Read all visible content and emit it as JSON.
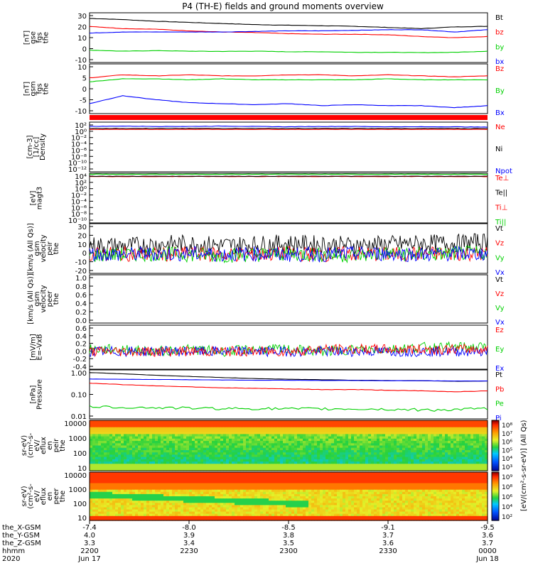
{
  "title": "P4 (TH-E) fields and ground moments overview",
  "colors": {
    "black": "#000000",
    "red": "#ff0000",
    "green": "#00d000",
    "blue": "#0000ff"
  },
  "chart_data": [
    {
      "type": "line",
      "ylabel": [
        "the",
        "fgs",
        "gse",
        "[nT]"
      ],
      "ticks": [
        "30",
        "20",
        "10",
        "0",
        "-10"
      ],
      "ylim": [
        -12,
        32
      ],
      "legend": [
        {
          "label": "Bt",
          "color": "black"
        },
        {
          "label": "bz",
          "color": "red"
        },
        {
          "label": "by",
          "color": "green"
        },
        {
          "label": "bx",
          "color": "blue"
        }
      ],
      "series": [
        {
          "label": "Bt",
          "color": "black",
          "values": [
            27,
            26,
            24.5,
            23.5,
            22.5,
            21.5,
            21,
            20.5,
            20,
            19,
            18,
            19.5,
            20
          ]
        },
        {
          "label": "bz",
          "color": "red",
          "values": [
            20,
            18,
            17.5,
            16,
            15,
            14.5,
            13.5,
            13,
            13,
            12.5,
            11,
            10,
            11
          ]
        },
        {
          "label": "by",
          "color": "green",
          "values": [
            -1,
            -2,
            -1.5,
            -2,
            -2.2,
            -2,
            -2.5,
            -2.5,
            -3,
            -3,
            -3.3,
            -3,
            -2
          ]
        },
        {
          "label": "bx",
          "color": "blue",
          "values": [
            14,
            15,
            15,
            15,
            15,
            15.5,
            16,
            16,
            16.5,
            17,
            17,
            15,
            17
          ]
        }
      ]
    },
    {
      "type": "line",
      "ylabel": [
        "the",
        "fgs",
        "gsm",
        "[nT]"
      ],
      "ticks": [
        "10",
        "5",
        "0",
        "-5",
        "-10"
      ],
      "ylim": [
        -13,
        12
      ],
      "legend": [
        {
          "label": "Bz",
          "color": "red"
        },
        {
          "label": "By",
          "color": "green"
        },
        {
          "label": "Bx",
          "color": "blue"
        }
      ],
      "series": [
        {
          "label": "Bz",
          "color": "red",
          "values": [
            5,
            6.5,
            6,
            6.5,
            6,
            6,
            6.5,
            6.5,
            6,
            6.5,
            6,
            5.5,
            6
          ]
        },
        {
          "label": "By",
          "color": "green",
          "values": [
            3,
            4.5,
            4.5,
            4,
            4.5,
            4,
            4,
            4,
            4,
            4.5,
            4,
            4,
            4
          ]
        },
        {
          "label": "Bx",
          "color": "blue",
          "values": [
            -8,
            -4,
            -6,
            -7.5,
            -8,
            -8.5,
            -8,
            -9,
            -8.5,
            -9,
            -9,
            -10,
            -9
          ]
        }
      ]
    },
    {
      "type": "line",
      "ylabel": [
        "Density",
        "[1/cc]",
        "[cm-3]"
      ],
      "ticks": [
        "10²",
        "10⁰",
        "10⁻²",
        "10⁻⁴",
        "10⁻⁶",
        "10⁻⁸",
        "10⁻¹⁰",
        "10⁻¹²"
      ],
      "ylim": [
        -12.5,
        2.5
      ],
      "legend": [
        {
          "label": "Ne",
          "color": "red"
        },
        {
          "label": "Ni",
          "color": "black"
        },
        {
          "label": "Npot",
          "color": "blue"
        }
      ],
      "series": [
        {
          "label": "Ne",
          "color": "red",
          "values": [
            0.3,
            0.3,
            0.3,
            0.3,
            0.3,
            0.3,
            0.3,
            0.3,
            0.3,
            0.3,
            0.3,
            0.3,
            0.3
          ]
        },
        {
          "label": "Ni",
          "color": "black",
          "values": [
            0.6,
            0.6,
            0.6,
            0.6,
            0.6,
            0.6,
            0.6,
            0.6,
            0.6,
            0.6,
            0.6,
            0.6,
            0.6
          ]
        },
        {
          "label": "Npot",
          "color": "blue",
          "values": [
            1.2,
            1.3,
            1.2,
            1.2,
            1.3,
            1.2,
            1.1,
            1.2,
            1.2,
            1.1,
            1.1,
            1.1,
            1.0
          ]
        }
      ]
    },
    {
      "type": "line",
      "ylabel": [
        "magt3",
        "[eV]"
      ],
      "ticks": [
        "10⁴",
        "10²",
        "10⁰",
        "10⁻²",
        "10⁻⁴",
        "10⁻⁶",
        "10⁻⁸",
        "10⁻¹⁰"
      ],
      "ylim": [
        -10.5,
        4.5
      ],
      "legend": [
        {
          "label": "Te⊥",
          "color": "red"
        },
        {
          "label": "Te||",
          "color": "black"
        },
        {
          "label": "Ti⊥",
          "color": "red"
        },
        {
          "label": "Ti||",
          "color": "green"
        }
      ],
      "series": [
        {
          "label": "Te⊥",
          "color": "red",
          "values": [
            3.5,
            3.5,
            3.5,
            3.5,
            3.5,
            3.5,
            3.5,
            3.5,
            3.5,
            3.5,
            3.5,
            3.5,
            3.5
          ]
        },
        {
          "label": "Te||",
          "color": "black",
          "values": [
            3.6,
            3.6,
            3.6,
            3.6,
            3.6,
            3.6,
            3.6,
            3.6,
            3.6,
            3.6,
            3.6,
            3.6,
            3.6
          ]
        },
        {
          "label": "Ti||",
          "color": "green",
          "values": [
            4.2,
            4.2,
            4.2,
            4.2,
            4.2,
            4.2,
            4.2,
            4.2,
            4.2,
            4.2,
            4.2,
            4.2,
            4.2
          ]
        }
      ]
    },
    {
      "type": "line",
      "ylabel": [
        "the",
        "peir",
        "velocity",
        "gsm",
        "[km/s (All Qs)]"
      ],
      "ticks": [
        "30",
        "20",
        "10",
        "0",
        "-10",
        "-20"
      ],
      "ylim": [
        -20,
        33
      ],
      "legend": [
        {
          "label": "Vt",
          "color": "black"
        },
        {
          "label": "Vz",
          "color": "red"
        },
        {
          "label": "Vy",
          "color": "green"
        },
        {
          "label": "Vx",
          "color": "blue"
        }
      ],
      "series": [
        {
          "label": "Vt",
          "color": "black",
          "values": [
            10,
            9,
            11,
            12,
            10,
            11,
            12,
            11,
            10,
            11,
            12,
            12,
            14
          ]
        },
        {
          "label": "Vz",
          "color": "red",
          "values": [
            0,
            1,
            0,
            1,
            0,
            0,
            1,
            0,
            1,
            0,
            1,
            1,
            1
          ]
        },
        {
          "label": "Vy",
          "color": "green",
          "values": [
            -1,
            0,
            1,
            0,
            -1,
            0,
            1,
            0,
            -1,
            1,
            0,
            1,
            2
          ]
        },
        {
          "label": "Vx",
          "color": "blue",
          "values": [
            1,
            0,
            1,
            1,
            0,
            1,
            0,
            0,
            1,
            1,
            0,
            1,
            1
          ]
        }
      ]
    },
    {
      "type": "line",
      "ylabel": [
        "the",
        "peer",
        "velocity",
        "gsm",
        "[km/s (All Qs)]"
      ],
      "ticks": [
        "1.0",
        "0.8",
        "0.6",
        "0.4",
        "0.2",
        "0.0"
      ],
      "ylim": [
        0,
        1
      ],
      "legend": [
        {
          "label": "Vt",
          "color": "black"
        },
        {
          "label": "Vz",
          "color": "red"
        },
        {
          "label": "Vy",
          "color": "green"
        },
        {
          "label": "Vx",
          "color": "blue"
        }
      ],
      "series": []
    },
    {
      "type": "line",
      "ylabel": [
        "E=-VxB",
        "[mV/m]"
      ],
      "ticks": [
        "0.6",
        "0.4",
        "0.2",
        "0.0",
        "-0.2",
        "-0.4"
      ],
      "ylim": [
        -0.42,
        0.62
      ],
      "legend": [
        {
          "label": "Ez",
          "color": "red"
        },
        {
          "label": "Ey",
          "color": "green"
        },
        {
          "label": "Ex",
          "color": "blue"
        }
      ],
      "series": [
        {
          "label": "Ey",
          "color": "green",
          "values": [
            0.05,
            0.05,
            0.0,
            0.05,
            0.0,
            0.05,
            0.05,
            0.0,
            0.05,
            0.05,
            0.1,
            0.1,
            0.1
          ]
        },
        {
          "label": "Ex",
          "color": "blue",
          "values": [
            0.0,
            0.0,
            0.0,
            0.0,
            0.0,
            0.0,
            0.0,
            0.0,
            0.0,
            0.0,
            0.0,
            0.0,
            0.0
          ]
        },
        {
          "label": "Ez",
          "color": "red",
          "values": [
            0.0,
            0.0,
            0.0,
            0.0,
            0.0,
            0.0,
            0.0,
            0.05,
            0.05,
            0.05,
            0.05,
            0.05,
            0.05
          ]
        }
      ]
    },
    {
      "type": "line",
      "scale": "log",
      "ylabel": [
        "Pressure",
        "[nPa]"
      ],
      "ticks": [
        "1.00",
        "0.10",
        "0.01"
      ],
      "ylim": [
        0.009,
        1.1
      ],
      "legend": [
        {
          "label": "Pt",
          "color": "black"
        },
        {
          "label": "Pb",
          "color": "red"
        },
        {
          "label": "Pe",
          "color": "green"
        },
        {
          "label": "Pi",
          "color": "blue"
        }
      ],
      "series": [
        {
          "label": "Pt",
          "color": "black",
          "values": [
            0.85,
            0.75,
            0.65,
            0.58,
            0.52,
            0.47,
            0.44,
            0.42,
            0.4,
            0.39,
            0.38,
            0.36,
            0.37
          ]
        },
        {
          "label": "Pb",
          "color": "red",
          "values": [
            0.3,
            0.26,
            0.23,
            0.21,
            0.19,
            0.18,
            0.17,
            0.16,
            0.16,
            0.15,
            0.14,
            0.13,
            0.14
          ]
        },
        {
          "label": "Pe",
          "color": "green",
          "values": [
            0.03,
            0.028,
            0.027,
            0.026,
            0.025,
            0.025,
            0.024,
            0.024,
            0.024,
            0.023,
            0.022,
            0.022,
            0.025
          ]
        },
        {
          "label": "Pi",
          "color": "blue",
          "values": [
            0.45,
            0.44,
            0.43,
            0.42,
            0.41,
            0.4,
            0.4,
            0.39,
            0.39,
            0.38,
            0.38,
            0.37,
            0.37
          ]
        }
      ]
    },
    {
      "type": "heatmap",
      "ylabel": [
        "the",
        "peir",
        "en",
        "eflux",
        "eV/",
        "(cm²-s-",
        "sr-eV)"
      ],
      "ticks": [
        "10000",
        "1000",
        "100",
        "10"
      ],
      "colorbar_ticks": [
        "10⁸",
        "10⁷",
        "10⁶",
        "10⁵",
        "10⁴",
        "10³"
      ],
      "colorbar_label": "[eV/(cm²-s-sr-eV)] (All Qs)"
    },
    {
      "type": "heatmap",
      "ylabel": [
        "the",
        "peer",
        "en",
        "eflux",
        "eV/",
        "(cm²-s-",
        "sr-eV)"
      ],
      "ticks": [
        "10000",
        "1000",
        "100",
        "10"
      ],
      "colorbar_ticks": [
        "10⁹",
        "10⁸",
        "10⁶",
        "10⁴",
        "10²"
      ],
      "colorbar_label": "[eV/(cm²-s-sr-eV)] (All Qs)"
    }
  ],
  "xaxis": {
    "row_labels": [
      "the_X-GSM",
      "the_Y-GSM",
      "the_Z-GSM",
      "hhmm",
      "2020"
    ],
    "columns": [
      {
        "X": "-7.4",
        "Y": "4.0",
        "Z": "3.3",
        "time": "2200",
        "date": "Jun 17"
      },
      {
        "X": "-8.0",
        "Y": "3.9",
        "Z": "3.4",
        "time": "2230",
        "date": ""
      },
      {
        "X": "-8.5",
        "Y": "3.8",
        "Z": "3.5",
        "time": "2300",
        "date": ""
      },
      {
        "X": "-9.1",
        "Y": "3.7",
        "Z": "3.6",
        "time": "2330",
        "date": ""
      },
      {
        "X": "-9.5",
        "Y": "3.6",
        "Z": "3.7",
        "time": "0000",
        "date": "Jun 18"
      }
    ]
  }
}
